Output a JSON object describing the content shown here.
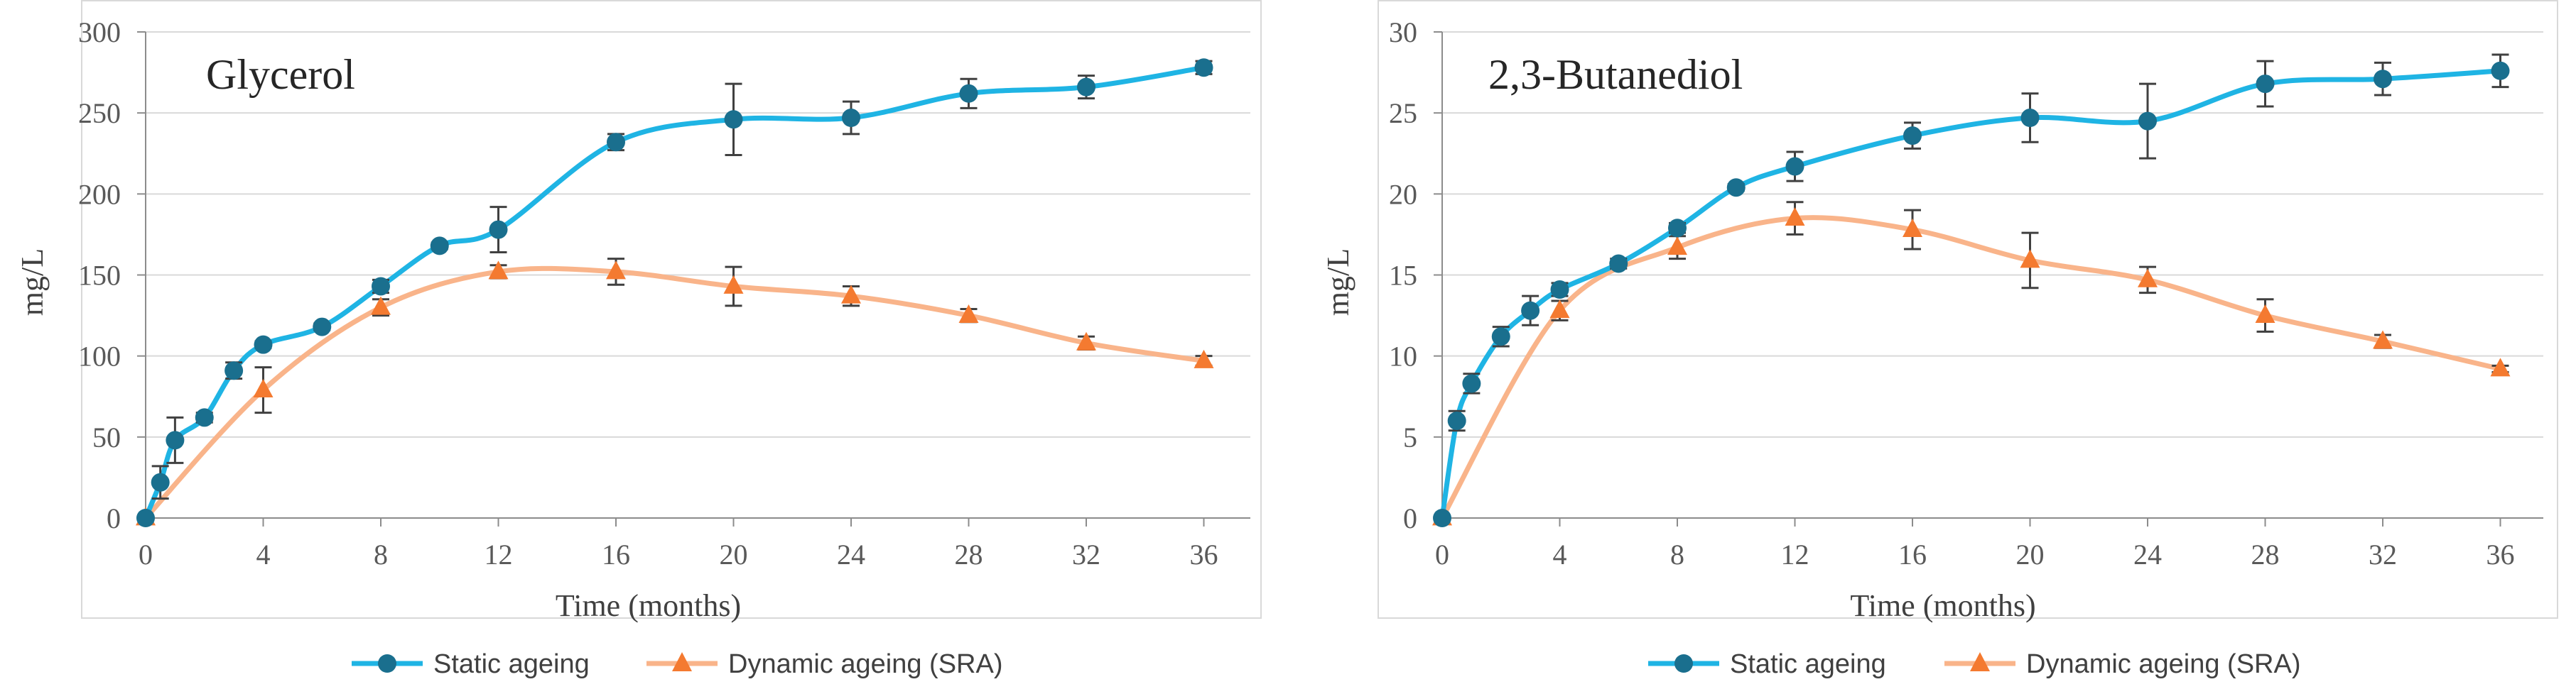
{
  "chart_data": [
    {
      "type": "line",
      "title": "Glycerol",
      "xlabel": "Time (months)",
      "ylabel": "mg/L",
      "xlim": [
        0,
        36
      ],
      "ylim": [
        0,
        300
      ],
      "x_ticks": [
        "0",
        "4",
        "8",
        "12",
        "16",
        "20",
        "24",
        "28",
        "32",
        "36"
      ],
      "y_ticks": [
        "0",
        "50",
        "100",
        "150",
        "200",
        "250",
        "300"
      ],
      "grid": "horizontal",
      "series": [
        {
          "name": "Static ageing",
          "color": "#1fb4e4",
          "marker": "circle",
          "marker_color": "#1a6f8e",
          "x": [
            0,
            0.5,
            1,
            2,
            3,
            4,
            6,
            8,
            10,
            12,
            16,
            20,
            24,
            28,
            32,
            36
          ],
          "values": [
            0,
            22,
            48,
            62,
            91,
            107,
            118,
            143,
            168,
            178,
            232,
            246,
            247,
            262,
            266,
            278
          ],
          "errors": [
            0,
            10,
            14,
            3,
            5,
            2,
            2,
            4,
            2,
            14,
            5,
            22,
            10,
            9,
            7,
            4
          ]
        },
        {
          "name": "Dynamic ageing (SRA)",
          "color": "#f9b48a",
          "marker": "triangle",
          "marker_color": "#f47a30",
          "x": [
            0,
            4,
            8,
            12,
            16,
            20,
            24,
            28,
            32,
            36
          ],
          "values": [
            0,
            79,
            130,
            152,
            152,
            143,
            137,
            125,
            108,
            97
          ],
          "errors": [
            0,
            14,
            5,
            4,
            8,
            12,
            6,
            4,
            4,
            3
          ]
        }
      ]
    },
    {
      "type": "line",
      "title": "2,3-Butanediol",
      "xlabel": "Time (months)",
      "ylabel": "mg/L",
      "xlim": [
        0,
        36
      ],
      "ylim": [
        0,
        30
      ],
      "x_ticks": [
        "0",
        "4",
        "8",
        "12",
        "16",
        "20",
        "24",
        "28",
        "32",
        "36"
      ],
      "y_ticks": [
        "0",
        "5",
        "10",
        "15",
        "20",
        "25",
        "30"
      ],
      "grid": "horizontal",
      "series": [
        {
          "name": "Static ageing",
          "color": "#1fb4e4",
          "marker": "circle",
          "marker_color": "#1a6f8e",
          "x": [
            0,
            0.5,
            1,
            2,
            3,
            4,
            6,
            8,
            10,
            12,
            16,
            20,
            24,
            28,
            32,
            36
          ],
          "values": [
            0,
            6,
            8.3,
            11.2,
            12.8,
            14.1,
            15.7,
            17.9,
            20.4,
            21.7,
            23.6,
            24.7,
            24.5,
            26.8,
            27.1,
            27.6
          ],
          "errors": [
            0,
            0.6,
            0.6,
            0.6,
            0.9,
            0.4,
            0.3,
            0.3,
            0.2,
            0.9,
            0.8,
            1.5,
            2.3,
            1.4,
            1.0,
            1.0
          ]
        },
        {
          "name": "Dynamic ageing (SRA)",
          "color": "#f9b48a",
          "marker": "triangle",
          "marker_color": "#f47a30",
          "x": [
            0,
            4,
            8,
            12,
            16,
            20,
            24,
            28,
            32,
            36
          ],
          "values": [
            0,
            12.8,
            16.7,
            18.5,
            17.8,
            15.9,
            14.7,
            12.5,
            10.9,
            9.2
          ],
          "errors": [
            0,
            0.6,
            0.7,
            1.0,
            1.2,
            1.7,
            0.8,
            1.0,
            0.4,
            0.2
          ]
        }
      ]
    }
  ]
}
